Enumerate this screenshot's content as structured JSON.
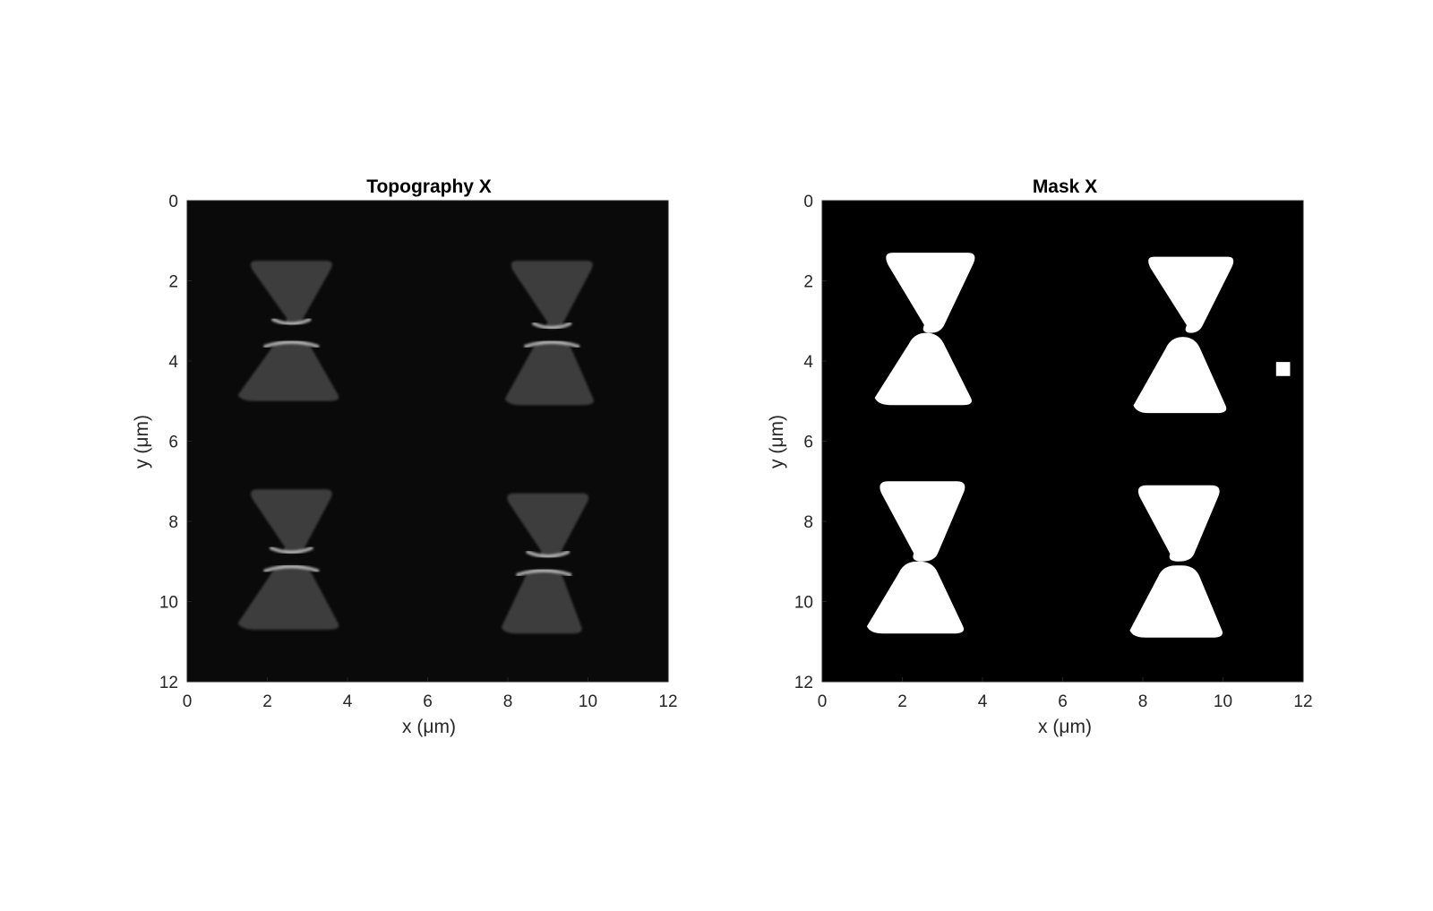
{
  "figure": {
    "background": "#ffffff",
    "text_color": "#262626"
  },
  "chart_data": [
    {
      "type": "heatmap",
      "title": "Topography X",
      "xlabel": "x (μm)",
      "ylabel": "y (μm)",
      "xlim": [
        0,
        12
      ],
      "ylim": [
        0,
        12
      ],
      "y_direction": "reversed",
      "x_ticks": [
        0,
        2,
        4,
        6,
        8,
        10,
        12
      ],
      "y_ticks": [
        0,
        2,
        4,
        6,
        8,
        10,
        12
      ],
      "grid": false,
      "colormap": "gray",
      "background_color": "#0a0a0a",
      "particle_color": "#3c3c3c",
      "edge_highlight_color": "#dcdcdc",
      "particles": [
        {
          "upper": {
            "cx": 2.6,
            "y_top": 1.5,
            "y_bottom": 3.1,
            "w_top": 2.2,
            "w_bottom": 0.4
          },
          "lower": {
            "cx": 2.6,
            "y_top": 3.5,
            "y_bottom": 5.0,
            "w_top": 0.8,
            "w_bottom": 2.5
          }
        },
        {
          "upper": {
            "cx": 9.1,
            "y_top": 1.5,
            "y_bottom": 3.2,
            "w_top": 2.2,
            "w_bottom": 0.4
          },
          "lower": {
            "cx": 9.1,
            "y_top": 3.5,
            "y_bottom": 5.1,
            "w_top": 0.8,
            "w_bottom": 2.2
          }
        },
        {
          "upper": {
            "cx": 2.6,
            "y_top": 7.2,
            "y_bottom": 8.8,
            "w_top": 2.2,
            "w_bottom": 0.5
          },
          "lower": {
            "cx": 2.6,
            "y_top": 9.1,
            "y_bottom": 10.7,
            "w_top": 0.8,
            "w_bottom": 2.5
          }
        },
        {
          "upper": {
            "cx": 9.0,
            "y_top": 7.3,
            "y_bottom": 8.9,
            "w_top": 2.2,
            "w_bottom": 0.5
          },
          "lower": {
            "cx": 8.9,
            "y_top": 9.2,
            "y_bottom": 10.8,
            "w_top": 0.8,
            "w_bottom": 2.0
          }
        }
      ]
    },
    {
      "type": "heatmap",
      "title": "Mask X",
      "xlabel": "x (μm)",
      "ylabel": "y (μm)",
      "xlim": [
        0,
        12
      ],
      "ylim": [
        0,
        12
      ],
      "y_direction": "reversed",
      "x_ticks": [
        0,
        2,
        4,
        6,
        8,
        10,
        12
      ],
      "y_ticks": [
        0,
        2,
        4,
        6,
        8,
        10,
        12
      ],
      "grid": false,
      "colormap": "binary",
      "background_color": "#000000",
      "particle_color": "#ffffff",
      "particles": [
        {
          "upper": {
            "cx": 2.7,
            "y_top": 1.3,
            "y_bottom": 3.3,
            "w_top": 2.4,
            "w_bottom": 0.5
          },
          "lower": {
            "cx": 2.6,
            "y_top": 3.3,
            "y_bottom": 5.1,
            "w_top": 0.6,
            "w_bottom": 2.4
          }
        },
        {
          "upper": {
            "cx": 9.2,
            "y_top": 1.4,
            "y_bottom": 3.3,
            "w_top": 2.3,
            "w_bottom": 0.4
          },
          "lower": {
            "cx": 9.0,
            "y_top": 3.4,
            "y_bottom": 5.3,
            "w_top": 0.6,
            "w_bottom": 2.3
          }
        },
        {
          "upper": {
            "cx": 2.5,
            "y_top": 7.0,
            "y_bottom": 9.0,
            "w_top": 2.3,
            "w_bottom": 0.6
          },
          "lower": {
            "cx": 2.4,
            "y_top": 9.0,
            "y_bottom": 10.8,
            "w_top": 0.7,
            "w_bottom": 2.4
          }
        },
        {
          "upper": {
            "cx": 8.9,
            "y_top": 7.1,
            "y_bottom": 9.0,
            "w_top": 2.2,
            "w_bottom": 0.6
          },
          "lower": {
            "cx": 8.9,
            "y_top": 9.1,
            "y_bottom": 10.9,
            "w_top": 0.8,
            "w_bottom": 2.3
          }
        }
      ],
      "specks": [
        {
          "x": 11.5,
          "y": 4.2,
          "size": 0.35
        }
      ]
    }
  ]
}
